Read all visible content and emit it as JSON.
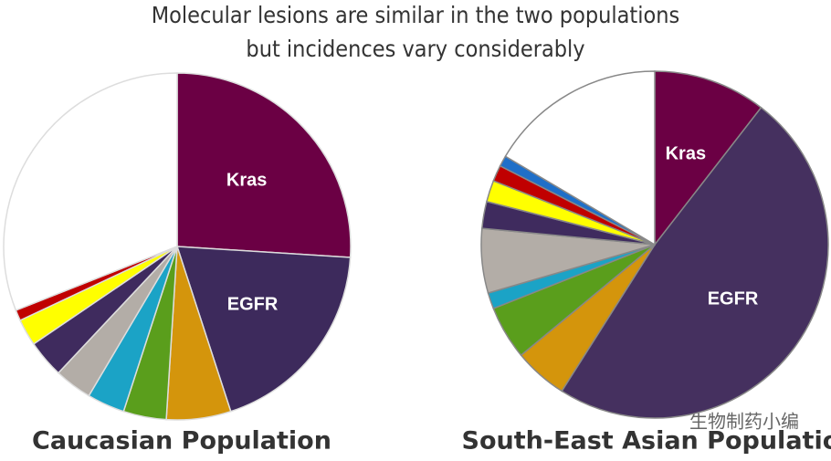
{
  "title_lines": [
    "Molecular lesions are similar in the two populations",
    "but incidences vary considerably"
  ],
  "watermark": "生物制药小编",
  "chart_data": [
    {
      "type": "pie",
      "title": "Caucasian Population",
      "categories": [
        "Kras",
        "EGFR",
        null,
        null,
        null,
        null,
        null,
        null,
        null,
        null
      ],
      "values": [
        26,
        19,
        6,
        4,
        3.5,
        3.5,
        3.5,
        2.5,
        1,
        31
      ],
      "colors": [
        "#6b0044",
        "#3d2a5c",
        "#d4950c",
        "#5a9e1c",
        "#1ba3c6",
        "#b3ada7",
        "#3f2b5e",
        "#ffff00",
        "#c00000",
        "#ffffff"
      ]
    },
    {
      "type": "pie",
      "title": "South-East Asian Population",
      "categories": [
        "Kras",
        "EGFR",
        null,
        null,
        null,
        null,
        null,
        null,
        null,
        null,
        null
      ],
      "values": [
        10.5,
        48.5,
        5,
        5,
        1.5,
        6,
        2.5,
        2,
        1.5,
        1,
        16.5
      ],
      "colors": [
        "#6b0044",
        "#45305f",
        "#d4950c",
        "#5a9e1c",
        "#1ba3c6",
        "#b3ada7",
        "#3f2b5e",
        "#ffff00",
        "#c00000",
        "#1f6fc8",
        "#ffffff"
      ]
    }
  ]
}
